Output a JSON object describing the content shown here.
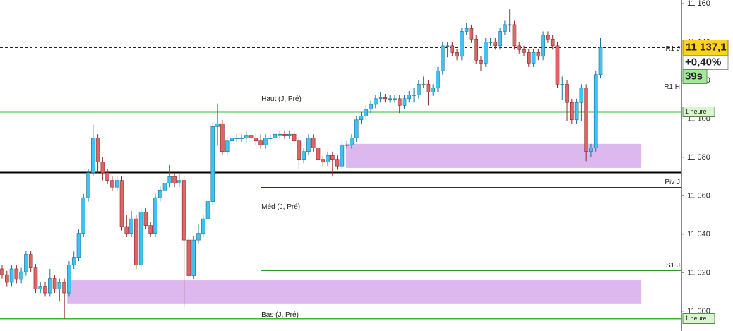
{
  "chart_data": {
    "type": "candlestick",
    "open": [
      11022,
      11019,
      11015,
      11022,
      11016.5,
      11020.5,
      11029.5,
      11022.5,
      11011.5,
      11013,
      11009.5,
      11017,
      11011.5,
      11015,
      11009.5,
      11024,
      11028,
      11040.5,
      11059,
      11072,
      11090,
      11077.5,
      11072,
      11068,
      11064.5,
      11068,
      11044,
      11040.5,
      11048,
      11024,
      11051.5,
      11044.5,
      11040.5,
      11059,
      11063,
      11066.5,
      11070,
      11066.5,
      11068,
      11037,
      11018.5,
      11037,
      11040.5,
      11048,
      11057,
      11096,
      11097.5,
      11083,
      11088.5,
      11090,
      11090,
      11090,
      11091.5,
      11090,
      11088.5,
      11086.5,
      11090,
      11090,
      11092,
      11092,
      11091.5,
      11092,
      11088.5,
      11079,
      11083,
      11090,
      11085,
      11079,
      11077.5,
      11081,
      11079,
      11075.5,
      11086.5,
      11086.5,
      11090,
      11099.5,
      11101.5,
      11105,
      11107.5,
      11110.5,
      11111,
      11110.5,
      11110.5,
      11110.5,
      11107,
      11110.5,
      11112.5,
      11112.5,
      11118,
      11118,
      11114,
      11116,
      11125,
      11138,
      11138,
      11134.5,
      11132.5,
      11145.5,
      11147,
      11141.5,
      11130.5,
      11129,
      11140,
      11140,
      11138,
      11145.5,
      11149,
      11149,
      11138,
      11136,
      11134.5,
      11129,
      11134.5,
      11132.5,
      11143.5,
      11141.5,
      11138,
      11118,
      11118,
      11108.5,
      11099.5,
      11108.5,
      11116,
      11083,
      11085,
      11123
    ],
    "high": [
      11024,
      11021,
      11024,
      11024,
      11022.5,
      11031.5,
      11031.5,
      11024.5,
      11015,
      11015,
      11022,
      11019,
      11017,
      11017,
      11026,
      11031,
      11042.5,
      11061,
      11074,
      11097,
      11092,
      11080,
      11074,
      11070,
      11070,
      11070,
      11050,
      11052,
      11050,
      11053.5,
      11053.5,
      11046.5,
      11061,
      11065,
      11072,
      11076,
      11072,
      11073,
      11070,
      11039,
      11039,
      11045,
      11050,
      11059,
      11098,
      11108,
      11099.5,
      11090.5,
      11092,
      11092,
      11092,
      11093.5,
      11093.5,
      11092,
      11092,
      11092,
      11092,
      11094,
      11094,
      11094,
      11094,
      11094,
      11090.5,
      11085,
      11092,
      11092,
      11087,
      11081,
      11083,
      11083,
      11081,
      11088.5,
      11088.5,
      11092,
      11101.5,
      11103.5,
      11107,
      11109.5,
      11112.5,
      11114,
      11113,
      11112.5,
      11112.5,
      11112.5,
      11112.5,
      11114.5,
      11116,
      11120,
      11122,
      11120,
      11118,
      11127,
      11140,
      11140,
      11140,
      11136.5,
      11147.5,
      11150,
      11149,
      11143.5,
      11132.5,
      11142,
      11142,
      11142,
      11147.5,
      11151,
      11157,
      11151,
      11140,
      11138,
      11136.5,
      11136.5,
      11136.5,
      11145.5,
      11145.5,
      11143.5,
      11140,
      11122,
      11120,
      11110.5,
      11110.5,
      11118,
      11118,
      11087,
      11125,
      11142
    ],
    "low": [
      11017,
      11013,
      11013,
      11014.5,
      11014.5,
      11018.5,
      11020.5,
      11009.5,
      11009.5,
      11007.5,
      11007.5,
      11009.5,
      11005,
      10996,
      11007.5,
      11022,
      11026,
      11038.5,
      11057,
      11070,
      11072,
      11068,
      11066,
      11062.5,
      11062.5,
      11042,
      11038.5,
      11038.5,
      11022,
      11022,
      11042.5,
      11038.5,
      11038.5,
      11057,
      11061,
      11064.5,
      11064.5,
      11064.5,
      11002,
      11016.5,
      11016.5,
      11035,
      11038.5,
      11046,
      11055,
      11086,
      11081,
      11081,
      11086.5,
      11088,
      11088,
      11088,
      11088,
      11086.5,
      11084.5,
      11084.5,
      11088,
      11088,
      11090,
      11089.5,
      11089.5,
      11086.5,
      11074,
      11077,
      11081,
      11083,
      11077,
      11075.5,
      11075.5,
      11070,
      11073.5,
      11073.5,
      11084.5,
      11084.5,
      11088,
      11097.5,
      11099.5,
      11103,
      11105.5,
      11108.5,
      11108.5,
      11108.5,
      11108.5,
      11103,
      11105,
      11108.5,
      11108.5,
      11110.5,
      11116,
      11107,
      11112,
      11114,
      11123,
      11132,
      11132.5,
      11130.5,
      11130.5,
      11143.5,
      11139.5,
      11128.5,
      11125,
      11127,
      11138,
      11136,
      11136,
      11143.5,
      11145,
      11136,
      11134,
      11132.5,
      11127,
      11127,
      11130.5,
      11130.5,
      11139.5,
      11136,
      11116,
      11110,
      11099,
      11097.5,
      11097.5,
      11099,
      11078,
      11080,
      11083,
      11121
    ],
    "close": [
      11019,
      11015,
      11022,
      11016.5,
      11020.5,
      11029.5,
      11022.5,
      11011.5,
      11013,
      11009.5,
      11017,
      11011.5,
      11015,
      11009.5,
      11024,
      11028,
      11040.5,
      11059,
      11072,
      11090,
      11077.5,
      11072,
      11068,
      11064.5,
      11068,
      11044,
      11040.5,
      11048,
      11024,
      11051.5,
      11044.5,
      11040.5,
      11059,
      11063,
      11066.5,
      11070,
      11066.5,
      11068,
      11037,
      11018.5,
      11037,
      11040.5,
      11048,
      11057,
      11096,
      11097.5,
      11083,
      11088.5,
      11090,
      11090,
      11090,
      11091.5,
      11090,
      11088.5,
      11086.5,
      11090,
      11090,
      11092,
      11092,
      11091.5,
      11092,
      11088.5,
      11079,
      11083,
      11090,
      11085,
      11079,
      11077.5,
      11081,
      11079,
      11075.5,
      11086.5,
      11086.5,
      11090,
      11099.5,
      11101.5,
      11105,
      11107.5,
      11110.5,
      11111,
      11110.5,
      11110.5,
      11110.5,
      11107,
      11110.5,
      11112.5,
      11112.5,
      11118,
      11118,
      11114,
      11116,
      11125,
      11138,
      11138,
      11134.5,
      11132.5,
      11145.5,
      11147,
      11141.5,
      11130.5,
      11129,
      11140,
      11140,
      11138,
      11145.5,
      11149,
      11149,
      11138,
      11136,
      11134.5,
      11129,
      11134.5,
      11132.5,
      11143.5,
      11141.5,
      11138,
      11118,
      11118,
      11108.5,
      11099.5,
      11108.5,
      11116,
      11083,
      11085,
      11123,
      11137.1
    ],
    "up_color": "#3ec3f2",
    "down_color": "#e06464",
    "ylim": [
      10989.7,
      11161.8
    ],
    "yticks": [
      {
        "value": 11000,
        "label": "11 000"
      },
      {
        "value": 11020,
        "label": "11 020"
      },
      {
        "value": 11040,
        "label": "11 040"
      },
      {
        "value": 11060,
        "label": "11 060"
      },
      {
        "value": 11080,
        "label": "11 080"
      },
      {
        "value": 11100,
        "label": "11 100"
      },
      {
        "value": 11120,
        "label": "11 120"
      },
      {
        "value": 11140,
        "label": "11 140"
      },
      {
        "value": 11160,
        "label": "11 160"
      }
    ],
    "zones": [
      {
        "from": 71.8,
        "to": 133.5,
        "low": 11074.5,
        "high": 11087
      },
      {
        "from": 13.6,
        "to": 133.5,
        "low": 11003.7,
        "high": 11016.1
      }
    ],
    "zone_color": "#dcb8ee",
    "levels": [
      {
        "label": "R1 J",
        "value": 11134,
        "color": "#d03030",
        "style": "solid",
        "width": 1,
        "from": 54,
        "label_pos": "right"
      },
      {
        "label": "R1 H",
        "value": 11114,
        "color": "#d03030",
        "style": "solid",
        "width": 1,
        "from": 0,
        "label_pos": "right"
      },
      {
        "label": "Haut (J, Pré)",
        "value": 11108,
        "color": "#333333",
        "style": "dashed",
        "width": 1,
        "from": 54,
        "label_pos": "left"
      },
      {
        "label": "1 heure",
        "value": 11104,
        "color": "#33bb33",
        "style": "solid",
        "width": 2,
        "from": 0,
        "label_pos": "tag"
      },
      {
        "value": 11072.3,
        "color": "#000000",
        "style": "solid",
        "width": 2,
        "from": 0
      },
      {
        "label": "Piv J",
        "value": 11064.6,
        "color": "#2424a0",
        "style": "solid",
        "width": 1,
        "from": 54,
        "label_pos": "right"
      },
      {
        "label": "Méd (J, Pré)",
        "value": 11051.7,
        "color": "#333333",
        "style": "dashed",
        "width": 1,
        "from": 54,
        "label_pos": "left"
      },
      {
        "label": "S1 J",
        "value": 11021.3,
        "color": "#2a9a2a",
        "style": "solid",
        "width": 1,
        "from": 54,
        "label_pos": "right"
      },
      {
        "label": "Bas (J, Pré)",
        "value": 10995.6,
        "color": "#333333",
        "style": "dashed",
        "width": 1,
        "from": 54,
        "label_pos": "left"
      },
      {
        "label": "1 heure",
        "value": 10996.3,
        "color": "#33bb33",
        "style": "solid",
        "width": 2,
        "from": 0,
        "label_pos": "tag"
      }
    ],
    "price": {
      "value": 11137.1,
      "label": "11 137,1",
      "change": "+0,40%",
      "timer": "39s"
    }
  }
}
